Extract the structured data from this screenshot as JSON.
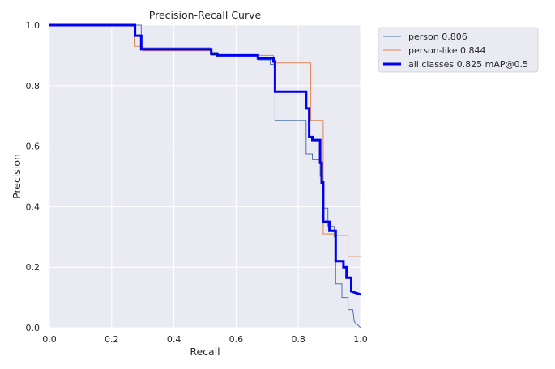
{
  "chart_data": {
    "type": "line",
    "title": "Precision-Recall Curve",
    "xlabel": "Recall",
    "ylabel": "Precision",
    "xlim": [
      0,
      1
    ],
    "ylim": [
      0,
      1
    ],
    "x_ticks": [
      "0.0",
      "0.2",
      "0.4",
      "0.6",
      "0.8",
      "1.0"
    ],
    "y_ticks": [
      "0.0",
      "0.2",
      "0.4",
      "0.6",
      "0.8",
      "1.0"
    ],
    "grid": true,
    "legend_position": "outside-top-right",
    "series": [
      {
        "name": "person 0.806",
        "color": "#4c72b0",
        "width": "thin",
        "points": [
          [
            0,
            1
          ],
          [
            0.295,
            1
          ],
          [
            0.295,
            0.925
          ],
          [
            0.52,
            0.925
          ],
          [
            0.52,
            0.91
          ],
          [
            0.54,
            0.91
          ],
          [
            0.54,
            0.9
          ],
          [
            0.67,
            0.9
          ],
          [
            0.67,
            0.885
          ],
          [
            0.71,
            0.885
          ],
          [
            0.71,
            0.87
          ],
          [
            0.725,
            0.87
          ],
          [
            0.725,
            0.685
          ],
          [
            0.825,
            0.685
          ],
          [
            0.825,
            0.575
          ],
          [
            0.845,
            0.575
          ],
          [
            0.845,
            0.555
          ],
          [
            0.87,
            0.555
          ],
          [
            0.87,
            0.5
          ],
          [
            0.88,
            0.5
          ],
          [
            0.88,
            0.395
          ],
          [
            0.895,
            0.395
          ],
          [
            0.895,
            0.335
          ],
          [
            0.915,
            0.335
          ],
          [
            0.915,
            0.3
          ],
          [
            0.92,
            0.3
          ],
          [
            0.92,
            0.145
          ],
          [
            0.94,
            0.145
          ],
          [
            0.94,
            0.1
          ],
          [
            0.96,
            0.1
          ],
          [
            0.96,
            0.06
          ],
          [
            0.975,
            0.06
          ],
          [
            0.98,
            0.02
          ],
          [
            1,
            0
          ]
        ]
      },
      {
        "name": "person-like 0.844",
        "color": "#dd8452",
        "width": "thin",
        "points": [
          [
            0,
            1
          ],
          [
            0.275,
            1
          ],
          [
            0.275,
            0.93
          ],
          [
            0.3,
            0.93
          ],
          [
            0.3,
            0.915
          ],
          [
            0.52,
            0.915
          ],
          [
            0.52,
            0.9
          ],
          [
            0.54,
            0.9
          ],
          [
            0.54,
            0.9
          ],
          [
            0.67,
            0.9
          ],
          [
            0.67,
            0.9
          ],
          [
            0.72,
            0.9
          ],
          [
            0.72,
            0.875
          ],
          [
            0.84,
            0.875
          ],
          [
            0.84,
            0.685
          ],
          [
            0.88,
            0.685
          ],
          [
            0.88,
            0.31
          ],
          [
            0.92,
            0.31
          ],
          [
            0.92,
            0.305
          ],
          [
            0.96,
            0.305
          ],
          [
            0.96,
            0.235
          ],
          [
            1,
            0.235
          ]
        ]
      },
      {
        "name": "all classes 0.825 mAP@0.5",
        "color": "#0000ee",
        "width": "thick",
        "points": [
          [
            0,
            1
          ],
          [
            0.275,
            1
          ],
          [
            0.275,
            0.965
          ],
          [
            0.295,
            0.965
          ],
          [
            0.295,
            0.92
          ],
          [
            0.52,
            0.92
          ],
          [
            0.52,
            0.905
          ],
          [
            0.54,
            0.905
          ],
          [
            0.54,
            0.9
          ],
          [
            0.67,
            0.9
          ],
          [
            0.67,
            0.89
          ],
          [
            0.72,
            0.89
          ],
          [
            0.72,
            0.88
          ],
          [
            0.725,
            0.88
          ],
          [
            0.725,
            0.78
          ],
          [
            0.825,
            0.78
          ],
          [
            0.825,
            0.725
          ],
          [
            0.835,
            0.725
          ],
          [
            0.835,
            0.63
          ],
          [
            0.845,
            0.63
          ],
          [
            0.845,
            0.62
          ],
          [
            0.87,
            0.62
          ],
          [
            0.87,
            0.545
          ],
          [
            0.875,
            0.545
          ],
          [
            0.875,
            0.48
          ],
          [
            0.88,
            0.48
          ],
          [
            0.88,
            0.35
          ],
          [
            0.9,
            0.35
          ],
          [
            0.9,
            0.32
          ],
          [
            0.92,
            0.32
          ],
          [
            0.92,
            0.22
          ],
          [
            0.945,
            0.22
          ],
          [
            0.945,
            0.2
          ],
          [
            0.955,
            0.2
          ],
          [
            0.955,
            0.165
          ],
          [
            0.97,
            0.165
          ],
          [
            0.97,
            0.12
          ],
          [
            1,
            0.11
          ]
        ]
      }
    ]
  }
}
